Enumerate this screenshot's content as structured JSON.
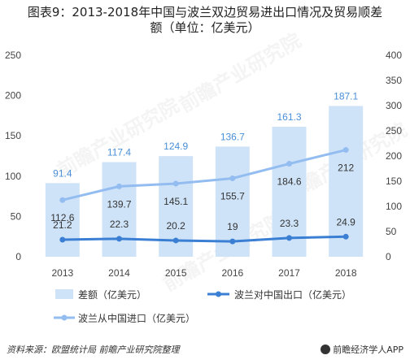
{
  "title": {
    "line1": "图表9：2013-2018年中国与波兰双边贸易进出口情况及贸易顺差",
    "line2": "额（单位：亿美元）"
  },
  "watermarks": [
    "前瞻产业研究院",
    "前瞻产业研究院",
    "前瞻产业研究院",
    "前瞻产业研究院"
  ],
  "footer": {
    "source": "资料来源：欧盟统计局 前瞻产业研究院整理",
    "brand": "前瞻经济学人APP"
  },
  "colors": {
    "bar": "#cfe3f8",
    "export_line": "#3a7fd4",
    "import_line": "#93bdf0",
    "bar_label": "#4a8fd8",
    "axis_text": "#444444"
  },
  "chart_data": {
    "type": "bar",
    "categories": [
      "2013",
      "2014",
      "2015",
      "2016",
      "2017",
      "2018"
    ],
    "series": [
      {
        "name": "差额（亿美元）",
        "type": "bar",
        "axis": "left",
        "values": [
          91.4,
          117.4,
          124.9,
          136.7,
          161.3,
          187.1
        ]
      },
      {
        "name": "波兰对中国出口（亿美元）",
        "type": "line",
        "axis": "left",
        "values": [
          21.2,
          22.3,
          20.2,
          19,
          23.3,
          24.9
        ]
      },
      {
        "name": "波兰从中国进口（亿美元）",
        "type": "line",
        "axis": "right",
        "values": [
          112.6,
          139.7,
          145.1,
          155.7,
          184.6,
          212
        ]
      }
    ],
    "left_axis": {
      "ticks": [
        0,
        50,
        100,
        150,
        200,
        250
      ],
      "ylim": [
        0,
        250
      ]
    },
    "right_axis": {
      "ticks": [
        0,
        50,
        100,
        150,
        200,
        250,
        300,
        350,
        400
      ],
      "ylim": [
        0,
        400
      ]
    },
    "legend_position": "bottom",
    "grid": false
  }
}
